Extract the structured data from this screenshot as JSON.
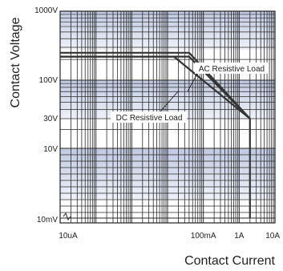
{
  "chart_data": {
    "type": "line",
    "xlabel": "Contact Current",
    "ylabel": "Contact Voltage",
    "x_tick_labels": [
      "10uA",
      "100mA",
      "1A",
      "10A"
    ],
    "y_tick_labels": [
      "1000V",
      "100V",
      "30V",
      "10V",
      "10mV"
    ],
    "series": [
      {
        "name": "AC Resistive Load",
        "x": [
          "10uA",
          "40mA",
          "2A"
        ],
        "y": [
          250,
          250,
          30
        ]
      },
      {
        "name": "DC Resistive Load",
        "x": [
          "10uA",
          "40mA",
          "2A"
        ],
        "y": [
          220,
          220,
          30
        ]
      },
      {
        "name": "",
        "x": [
          "10uA",
          "15mA",
          "2A"
        ],
        "y": [
          220,
          220,
          30
        ]
      }
    ],
    "limit_line": {
      "x": "2A",
      "y_from": 30,
      "y_to": "10mV"
    },
    "annotations": [
      {
        "text": "AC Resistive Load",
        "points_to": "AC Resistive Load"
      },
      {
        "text": "DC Resistive Load",
        "points_to": "DC Resistive Load"
      }
    ],
    "grid": true,
    "x_scale": "log",
    "y_scale": "log",
    "colors": {
      "bands": "#c9d2e6",
      "bands_light": "#e8ecf5",
      "lines": "#333333",
      "grid": "#2a2a2a"
    }
  }
}
